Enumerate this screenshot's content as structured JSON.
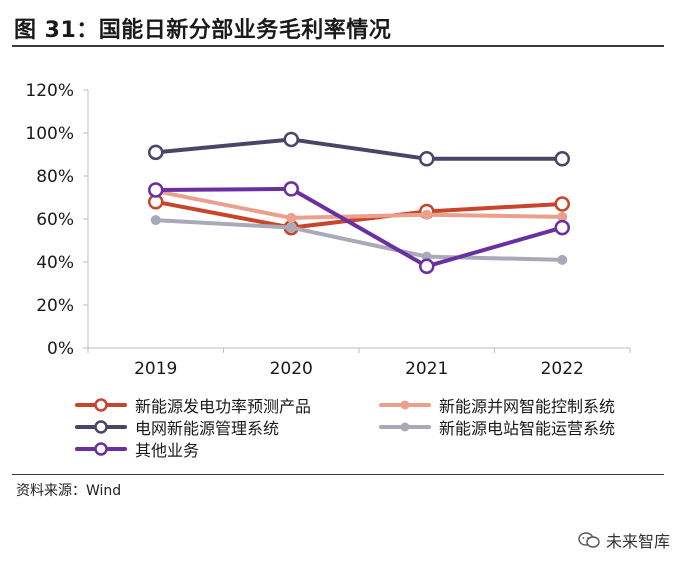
{
  "figure": {
    "title": "图 31：国能日新分部业务毛利率情况",
    "source": "资料来源：Wind",
    "watermark": "未来智库"
  },
  "chart_data": {
    "type": "line",
    "title": "",
    "xlabel": "",
    "ylabel": "",
    "categories": [
      "2019",
      "2020",
      "2021",
      "2022"
    ],
    "ylim": [
      0,
      120
    ],
    "yticks": [
      0,
      20,
      40,
      60,
      80,
      100,
      120
    ],
    "ytick_labels": [
      "0%",
      "20%",
      "40%",
      "60%",
      "80%",
      "100%",
      "120%"
    ],
    "grid": false,
    "legend_position": "bottom",
    "series": [
      {
        "name": "新能源发电功率预测产品",
        "values": [
          68,
          56,
          63.5,
          67
        ],
        "color": "#c8452c",
        "marker": "hollow-large"
      },
      {
        "name": "新能源并网智能控制系统",
        "values": [
          73,
          60.5,
          62,
          61
        ],
        "color": "#eaa08c",
        "marker": "filled-small"
      },
      {
        "name": "电网新能源管理系统",
        "values": [
          91,
          97,
          88,
          88
        ],
        "color": "#4b4466",
        "marker": "hollow-large"
      },
      {
        "name": "新能源电站智能运营系统",
        "values": [
          59.5,
          56,
          42.5,
          41
        ],
        "color": "#a9a9ba",
        "marker": "filled-small"
      },
      {
        "name": "其他业务",
        "values": [
          73.5,
          74,
          38,
          56
        ],
        "color": "#6a2fa0",
        "marker": "hollow-large"
      }
    ]
  }
}
